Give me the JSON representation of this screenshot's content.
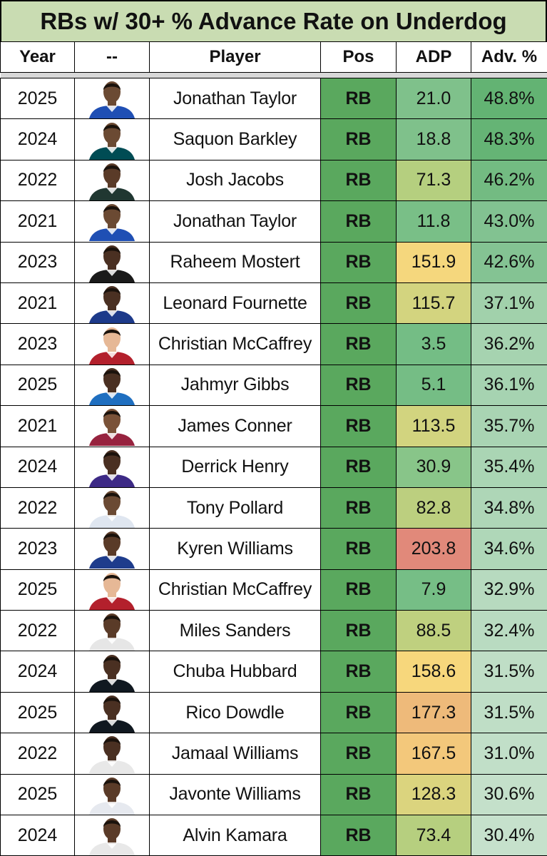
{
  "title": "RBs w/ 30+ % Advance Rate on Underdog",
  "columns": {
    "year": "Year",
    "photo": "--",
    "player": "Player",
    "pos": "Pos",
    "adp": "ADP",
    "adv": "Adv. %"
  },
  "chart_data": {
    "type": "table",
    "title": "RBs w/ 30+ % Advance Rate on Underdog",
    "columns": [
      "Year",
      "--",
      "Player",
      "Pos",
      "ADP",
      "Adv. %"
    ],
    "rows": [
      {
        "year": "2025",
        "player": "Jonathan Taylor",
        "pos": "RB",
        "adp": "21.0",
        "adv": "48.8%",
        "adp_color": "#7fc18b",
        "adv_color": "#63b373",
        "jersey": "#1f4fb4",
        "skin": "#6b4a33"
      },
      {
        "year": "2024",
        "player": "Saquon Barkley",
        "pos": "RB",
        "adp": "18.8",
        "adv": "48.3%",
        "adp_color": "#7fc18b",
        "adv_color": "#65b475",
        "jersey": "#004c54",
        "skin": "#6b4a33"
      },
      {
        "year": "2022",
        "player": "Josh Jacobs",
        "pos": "RB",
        "adp": "71.3",
        "adv": "46.2%",
        "adp_color": "#b5cf7f",
        "adv_color": "#73bb82",
        "jersey": "#203731",
        "skin": "#5a3b28"
      },
      {
        "year": "2021",
        "player": "Jonathan Taylor",
        "pos": "RB",
        "adp": "11.8",
        "adv": "43.0%",
        "adp_color": "#79bf87",
        "adv_color": "#82c291",
        "jersey": "#1f4fb4",
        "skin": "#6b4a33"
      },
      {
        "year": "2023",
        "player": "Raheem Mostert",
        "pos": "RB",
        "adp": "151.9",
        "adv": "42.6%",
        "adp_color": "#f5d77d",
        "adv_color": "#84c393",
        "jersey": "#1a1a1a",
        "skin": "#4a3022"
      },
      {
        "year": "2021",
        "player": "Leonard Fournette",
        "pos": "RB",
        "adp": "115.7",
        "adv": "37.1%",
        "adp_color": "#d3d47f",
        "adv_color": "#a1d1ab",
        "jersey": "#1d3a8a",
        "skin": "#4a3022"
      },
      {
        "year": "2023",
        "player": "Christian McCaffrey",
        "pos": "RB",
        "adp": "3.5",
        "adv": "36.2%",
        "adp_color": "#74bd85",
        "adv_color": "#a6d3b0",
        "jersey": "#b3202c",
        "skin": "#e6b896"
      },
      {
        "year": "2025",
        "player": "Jahmyr Gibbs",
        "pos": "RB",
        "adp": "5.1",
        "adv": "36.1%",
        "adp_color": "#75bd85",
        "adv_color": "#a6d3b1",
        "jersey": "#1f6fc0",
        "skin": "#4a3022"
      },
      {
        "year": "2021",
        "player": "James Conner",
        "pos": "RB",
        "adp": "113.5",
        "adv": "35.7%",
        "adp_color": "#d2d47f",
        "adv_color": "#a9d4b3",
        "jersey": "#97233f",
        "skin": "#7a5238"
      },
      {
        "year": "2024",
        "player": "Derrick Henry",
        "pos": "RB",
        "adp": "30.9",
        "adv": "35.4%",
        "adp_color": "#88c589",
        "adv_color": "#aad5b4",
        "jersey": "#3d2a86",
        "skin": "#4a3022"
      },
      {
        "year": "2022",
        "player": "Tony Pollard",
        "pos": "RB",
        "adp": "82.8",
        "adv": "34.8%",
        "adp_color": "#bccf7f",
        "adv_color": "#aed6b7",
        "jersey": "#dfe6f0",
        "skin": "#6b4a33"
      },
      {
        "year": "2023",
        "player": "Kyren Williams",
        "pos": "RB",
        "adp": "203.8",
        "adv": "34.6%",
        "adp_color": "#e1897a",
        "adv_color": "#afd7b8",
        "jersey": "#1e3c8c",
        "skin": "#5a3b28"
      },
      {
        "year": "2025",
        "player": "Christian McCaffrey",
        "pos": "RB",
        "adp": "7.9",
        "adv": "32.9%",
        "adp_color": "#76be86",
        "adv_color": "#b7dabf",
        "jersey": "#b3202c",
        "skin": "#e6b896"
      },
      {
        "year": "2022",
        "player": "Miles Sanders",
        "pos": "RB",
        "adp": "88.5",
        "adv": "32.4%",
        "adp_color": "#bfd07f",
        "adv_color": "#b9dbc1",
        "jersey": "#e6e6e6",
        "skin": "#5a3b28"
      },
      {
        "year": "2024",
        "player": "Chuba Hubbard",
        "pos": "RB",
        "adp": "158.6",
        "adv": "31.5%",
        "adp_color": "#f7d77c",
        "adv_color": "#bfdec6",
        "jersey": "#101820",
        "skin": "#4a3022"
      },
      {
        "year": "2025",
        "player": "Rico Dowdle",
        "pos": "RB",
        "adp": "177.3",
        "adv": "31.5%",
        "adp_color": "#eeba7a",
        "adv_color": "#bfdec6",
        "jersey": "#101820",
        "skin": "#4a3022"
      },
      {
        "year": "2022",
        "player": "Jamaal Williams",
        "pos": "RB",
        "adp": "167.5",
        "adv": "31.0%",
        "adp_color": "#f3c87b",
        "adv_color": "#c1dfc8",
        "jersey": "#e8e8e8",
        "skin": "#4a3022"
      },
      {
        "year": "2025",
        "player": "Javonte Williams",
        "pos": "RB",
        "adp": "128.3",
        "adv": "30.6%",
        "adp_color": "#dbd47e",
        "adv_color": "#c4e0ca",
        "jersey": "#e6e9ef",
        "skin": "#5a3b28"
      },
      {
        "year": "2024",
        "player": "Alvin Kamara",
        "pos": "RB",
        "adp": "73.4",
        "adv": "30.4%",
        "adp_color": "#b6cf7f",
        "adv_color": "#c6e1cc",
        "jersey": "#e8e8e8",
        "skin": "#5a3b28"
      }
    ]
  }
}
